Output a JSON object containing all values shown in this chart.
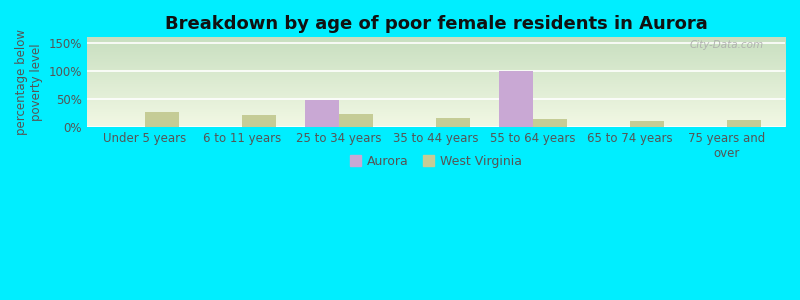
{
  "title": "Breakdown by age of poor female residents in Aurora",
  "categories": [
    "Under 5 years",
    "6 to 11 years",
    "25 to 34 years",
    "35 to 44 years",
    "55 to 64 years",
    "65 to 74 years",
    "75 years and\nover"
  ],
  "aurora_values": [
    0,
    0,
    48,
    0,
    100,
    0,
    0
  ],
  "wv_values": [
    28,
    22,
    23,
    17,
    15,
    11,
    13
  ],
  "aurora_color": "#c9a8d4",
  "wv_color": "#c5cc96",
  "ylim": [
    0,
    160
  ],
  "yticks": [
    0,
    50,
    100,
    150
  ],
  "ytick_labels": [
    "0%",
    "50%",
    "100%",
    "150%"
  ],
  "ylabel": "percentage below\npoverty level",
  "bar_width": 0.35,
  "outer_bg": "#00eeff",
  "grad_top": "#c8dfc0",
  "grad_bottom": "#f0f5e0",
  "grad_right": "#f5f5e8",
  "legend_aurora": "Aurora",
  "legend_wv": "West Virginia",
  "watermark": "City-Data.com",
  "title_fontsize": 13,
  "axis_fontsize": 8.5,
  "legend_fontsize": 9,
  "tick_color": "#555555",
  "grid_color": "#ffffff",
  "title_color": "#111111"
}
